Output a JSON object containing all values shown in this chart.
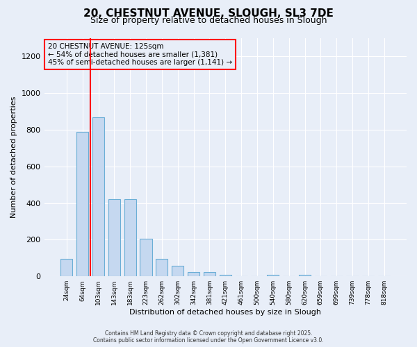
{
  "title_line1": "20, CHESTNUT AVENUE, SLOUGH, SL3 7DE",
  "title_line2": "Size of property relative to detached houses in Slough",
  "xlabel": "Distribution of detached houses by size in Slough",
  "ylabel": "Number of detached properties",
  "bar_labels": [
    "24sqm",
    "64sqm",
    "103sqm",
    "143sqm",
    "183sqm",
    "223sqm",
    "262sqm",
    "302sqm",
    "342sqm",
    "381sqm",
    "421sqm",
    "461sqm",
    "500sqm",
    "540sqm",
    "580sqm",
    "620sqm",
    "659sqm",
    "699sqm",
    "739sqm",
    "778sqm",
    "818sqm"
  ],
  "bar_values": [
    95,
    790,
    870,
    420,
    420,
    207,
    95,
    58,
    22,
    22,
    10,
    0,
    0,
    8,
    0,
    10,
    0,
    0,
    0,
    0,
    0
  ],
  "bar_color": "#c5d8f0",
  "bar_edge_color": "#6aaed6",
  "ylim": [
    0,
    1300
  ],
  "yticks": [
    0,
    200,
    400,
    600,
    800,
    1000,
    1200
  ],
  "vline_x": 1.5,
  "vline_color": "red",
  "annotation_text": "20 CHESTNUT AVENUE: 125sqm\n← 54% of detached houses are smaller (1,381)\n45% of semi-detached houses are larger (1,141) →",
  "box_color": "red",
  "footer1": "Contains HM Land Registry data © Crown copyright and database right 2025.",
  "footer2": "Contains public sector information licensed under the Open Government Licence v3.0.",
  "bg_color": "#e8eef8",
  "grid_color": "white",
  "bar_width": 0.75
}
